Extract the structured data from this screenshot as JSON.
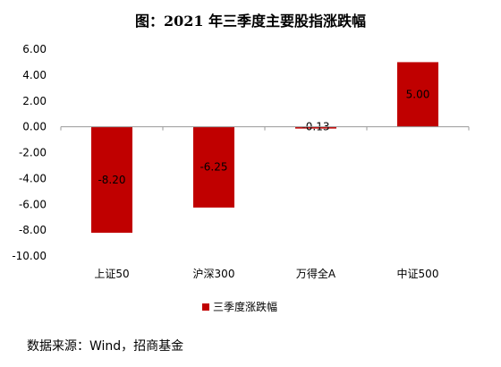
{
  "source_text": "数据来源：Wind，招商基金",
  "chart_data": {
    "type": "bar",
    "title": "图：2021 年三季度主要股指涨跌幅",
    "categories": [
      "上证50",
      "沪深300",
      "万得全A",
      "中证500"
    ],
    "series": [
      {
        "name": "三季度涨跌幅",
        "values": [
          -8.2,
          -6.25,
          -0.13,
          5.0
        ],
        "color": "#c00000"
      }
    ],
    "data_labels": [
      "-8.20",
      "-6.25",
      "-0.13",
      "5.00"
    ],
    "yticks": [
      "6.00",
      "4.00",
      "2.00",
      "0.00",
      "-2.00",
      "-4.00",
      "-6.00",
      "-8.00",
      "-10.00"
    ],
    "ylim": [
      -10,
      6
    ],
    "xlabel": "",
    "ylabel": "",
    "grid": false,
    "legend_position": "bottom"
  }
}
